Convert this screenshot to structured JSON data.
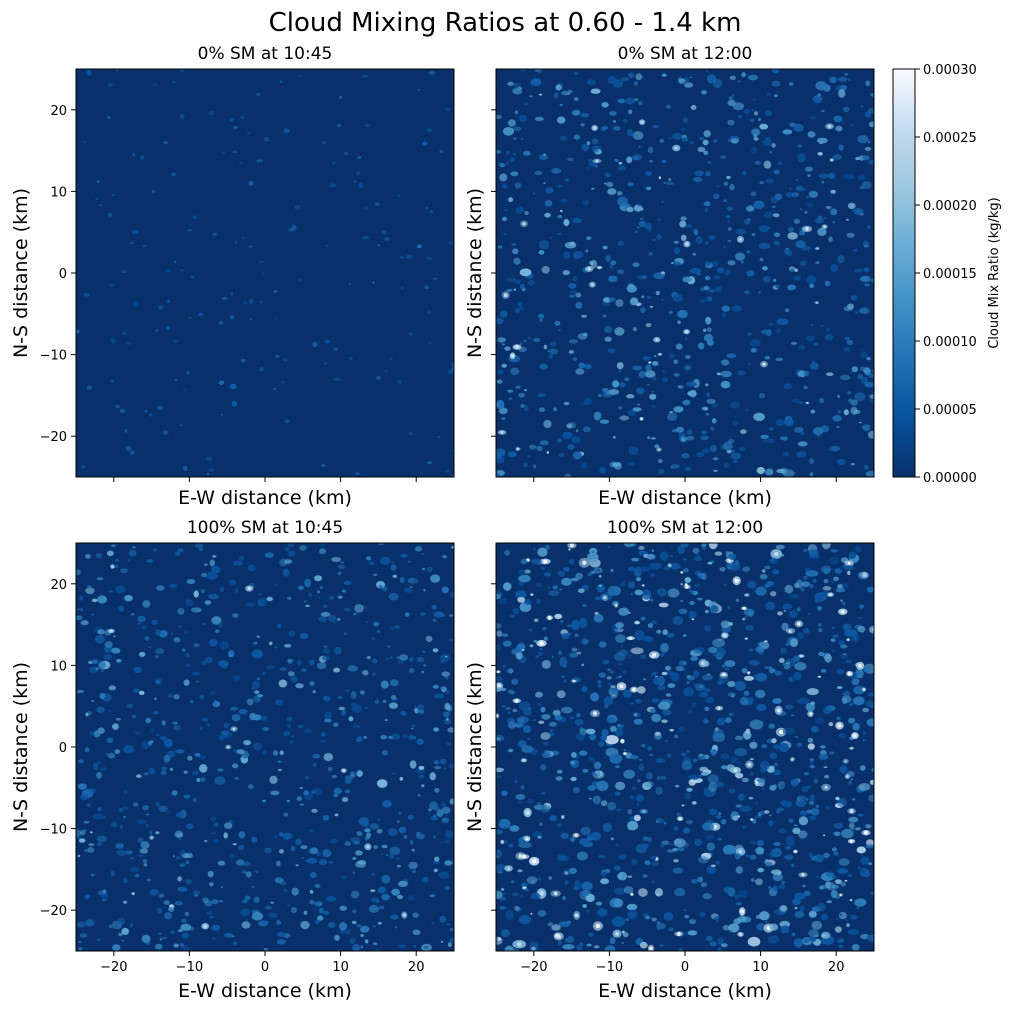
{
  "figure": {
    "title": "Cloud Mixing Ratios at 0.60 - 1.4 km"
  },
  "chart_data": [
    {
      "type": "heatmap",
      "title": "0% SM at 10:45",
      "xlabel": "E-W distance (km)",
      "ylabel": "N-S distance (km)",
      "xlim": [
        -25,
        25
      ],
      "ylim": [
        -25,
        25
      ],
      "xticks": [
        -20,
        -10,
        0,
        10,
        20
      ],
      "yticks": [
        -20,
        -10,
        0,
        10,
        20
      ],
      "show_xticklabels": false,
      "show_yticklabels": true,
      "cloud_density": 0.08,
      "cloud_intensity": 0.12
    },
    {
      "type": "heatmap",
      "title": "0% SM at 12:00",
      "xlabel": "E-W distance (km)",
      "ylabel": "N-S distance (km)",
      "xlim": [
        -25,
        25
      ],
      "ylim": [
        -25,
        25
      ],
      "xticks": [
        -20,
        -10,
        0,
        10,
        20
      ],
      "yticks": [
        -20,
        -10,
        0,
        10,
        20
      ],
      "show_xticklabels": false,
      "show_yticklabels": false,
      "cloud_density": 0.55,
      "cloud_intensity": 0.6
    },
    {
      "type": "heatmap",
      "title": "100% SM at 10:45",
      "xlabel": "E-W distance (km)",
      "ylabel": "N-S distance (km)",
      "xlim": [
        -25,
        25
      ],
      "ylim": [
        -25,
        25
      ],
      "xticks": [
        -20,
        -10,
        0,
        10,
        20
      ],
      "yticks": [
        -20,
        -10,
        0,
        10,
        20
      ],
      "show_xticklabels": true,
      "show_yticklabels": true,
      "cloud_density": 0.55,
      "cloud_intensity": 0.55
    },
    {
      "type": "heatmap",
      "title": "100% SM at 12:00",
      "xlabel": "E-W distance (km)",
      "ylabel": "N-S distance (km)",
      "xlim": [
        -25,
        25
      ],
      "ylim": [
        -25,
        25
      ],
      "xticks": [
        -20,
        -10,
        0,
        10,
        20
      ],
      "yticks": [
        -20,
        -10,
        0,
        10,
        20
      ],
      "show_xticklabels": true,
      "show_yticklabels": false,
      "cloud_density": 0.85,
      "cloud_intensity": 0.8
    }
  ],
  "colorbar": {
    "label": "Cloud Mix Ratio (kg/kg)",
    "range": [
      0,
      0.0003
    ],
    "ticks": [
      "0.00000",
      "0.00005",
      "0.00010",
      "0.00015",
      "0.00020",
      "0.00025",
      "0.00030"
    ],
    "colormap": "Blues_r",
    "colors": [
      "#08306b",
      "#08519c",
      "#2171b5",
      "#4292c6",
      "#6baed6",
      "#9ecae1",
      "#c6dbef",
      "#f7fbff"
    ]
  }
}
